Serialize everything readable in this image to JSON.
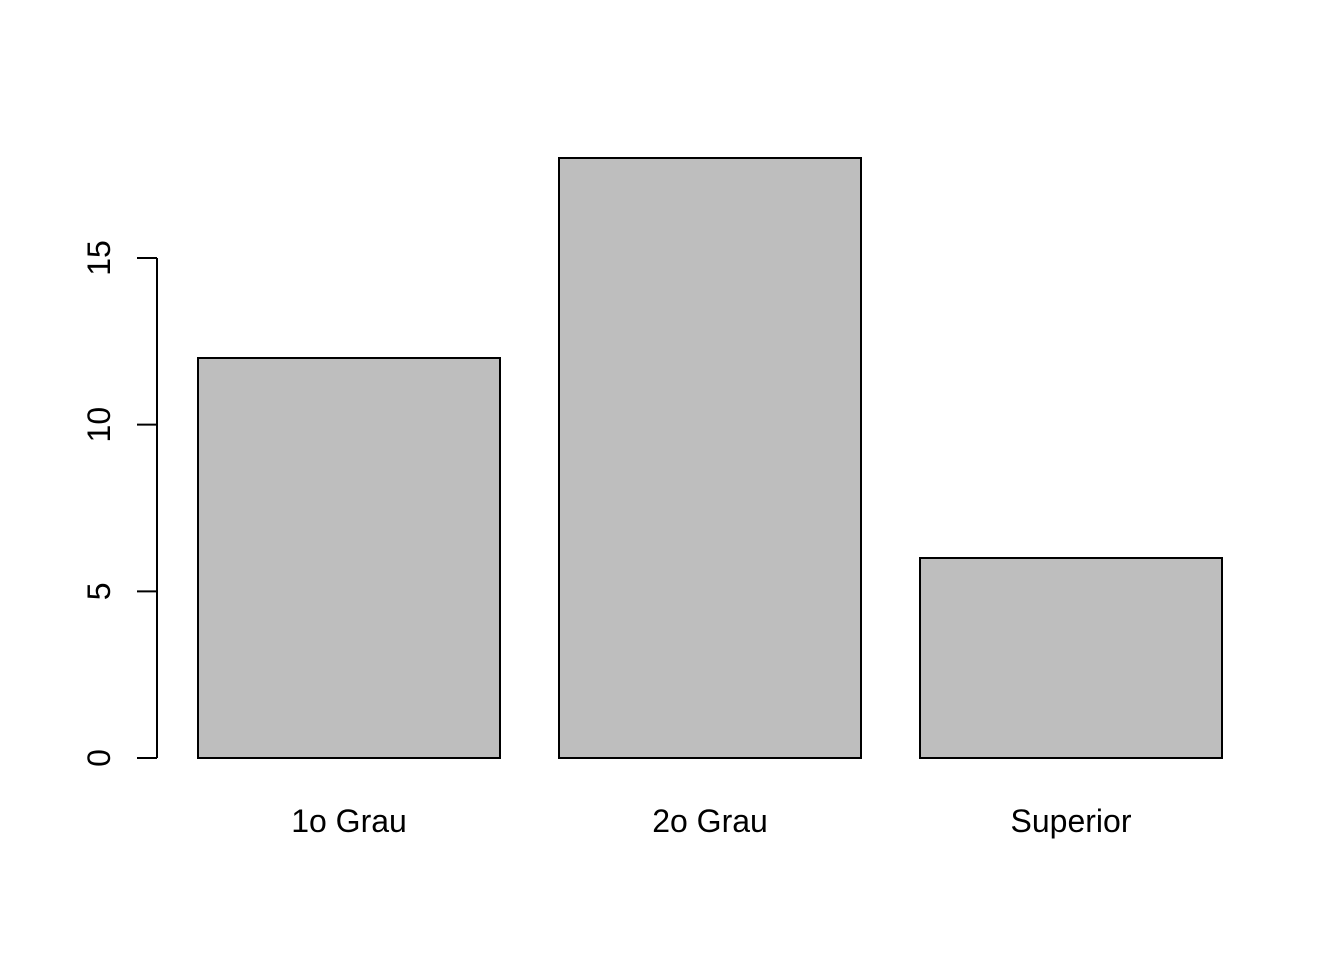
{
  "chart_data": {
    "type": "bar",
    "title": "",
    "xlabel": "",
    "ylabel": "",
    "categories": [
      "1o Grau",
      "2o Grau",
      "Superior"
    ],
    "values": [
      12,
      18,
      6
    ],
    "ylim": [
      0,
      18
    ],
    "yticks": [
      0,
      5,
      10,
      15
    ],
    "ytick_labels": [
      "0",
      "5",
      "10",
      "15"
    ],
    "grid": false,
    "bar_color": "#bebebe",
    "bar_border_color": "#000000",
    "axis_color": "#000000"
  }
}
